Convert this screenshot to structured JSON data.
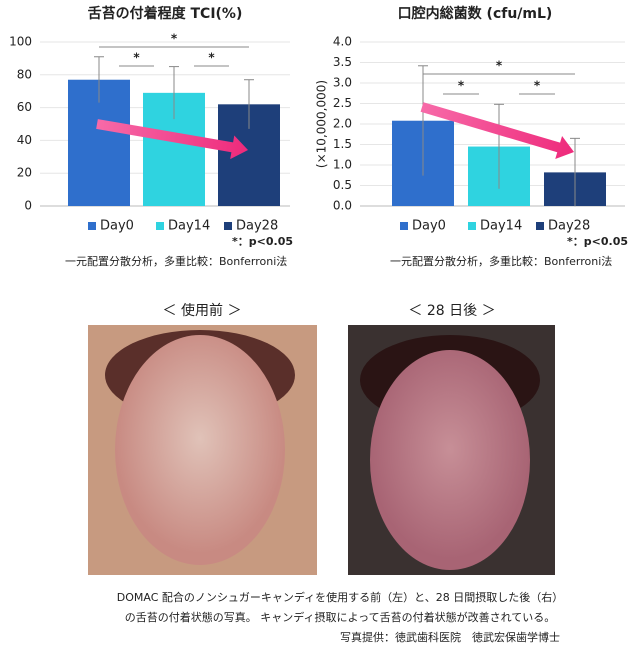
{
  "chart_data": [
    {
      "type": "bar",
      "title": "舌苔の付着程度 TCI(%)",
      "categories": [
        "Day0",
        "Day14",
        "Day28"
      ],
      "values": [
        77,
        69,
        62
      ],
      "errors": [
        14,
        16,
        15
      ],
      "colors": [
        "#2f6fcc",
        "#2fd3e0",
        "#1e3f7a"
      ],
      "ylim": [
        0,
        100
      ],
      "yticks": [
        0,
        20,
        40,
        60,
        80,
        100
      ],
      "significance": [
        "*",
        "*",
        "*"
      ],
      "note": "*：p<0.05",
      "method": "一元配置分散分析，多重比較：Bonferroni法"
    },
    {
      "type": "bar",
      "title": "口腔内総菌数 (cfu/mL)",
      "ylabel": "(×10,000,000)",
      "categories": [
        "Day0",
        "Day14",
        "Day28"
      ],
      "values": [
        2.08,
        1.45,
        0.82
      ],
      "errors": [
        1.34,
        1.03,
        0.83
      ],
      "colors": [
        "#2f6fcc",
        "#2fd3e0",
        "#1e3f7a"
      ],
      "ylim": [
        0,
        4
      ],
      "yticks": [
        {
          "value": 0,
          "label": "0.0"
        },
        {
          "value": 0.5,
          "label": "0.5"
        },
        {
          "value": 1,
          "label": "1.0"
        },
        {
          "value": 1.5,
          "label": "1.5"
        },
        {
          "value": 2,
          "label": "2.0"
        },
        {
          "value": 2.5,
          "label": "2.5"
        },
        {
          "value": 3,
          "label": "3.0"
        },
        {
          "value": 3.5,
          "label": "3.5"
        },
        {
          "value": 4,
          "label": "4.0"
        }
      ],
      "significance": [
        "*",
        "*",
        "*"
      ],
      "note": "*：p<0.05",
      "method": "一元配置分散分析，多重比較：Bonferroni法"
    }
  ],
  "photos": {
    "before": "＜ 使用前 ＞",
    "after": "＜ 28 日後 ＞"
  },
  "caption": [
    "DOMAC 配合のノンシュガーキャンディを使用する前（左）と、28 日間摂取した後（右）",
    "の舌苔の付着状態の写真。 キャンディ摂取によって舌苔の付着状態が改善されている。",
    "写真提供：徳武歯科医院　徳武宏保歯学博士"
  ]
}
